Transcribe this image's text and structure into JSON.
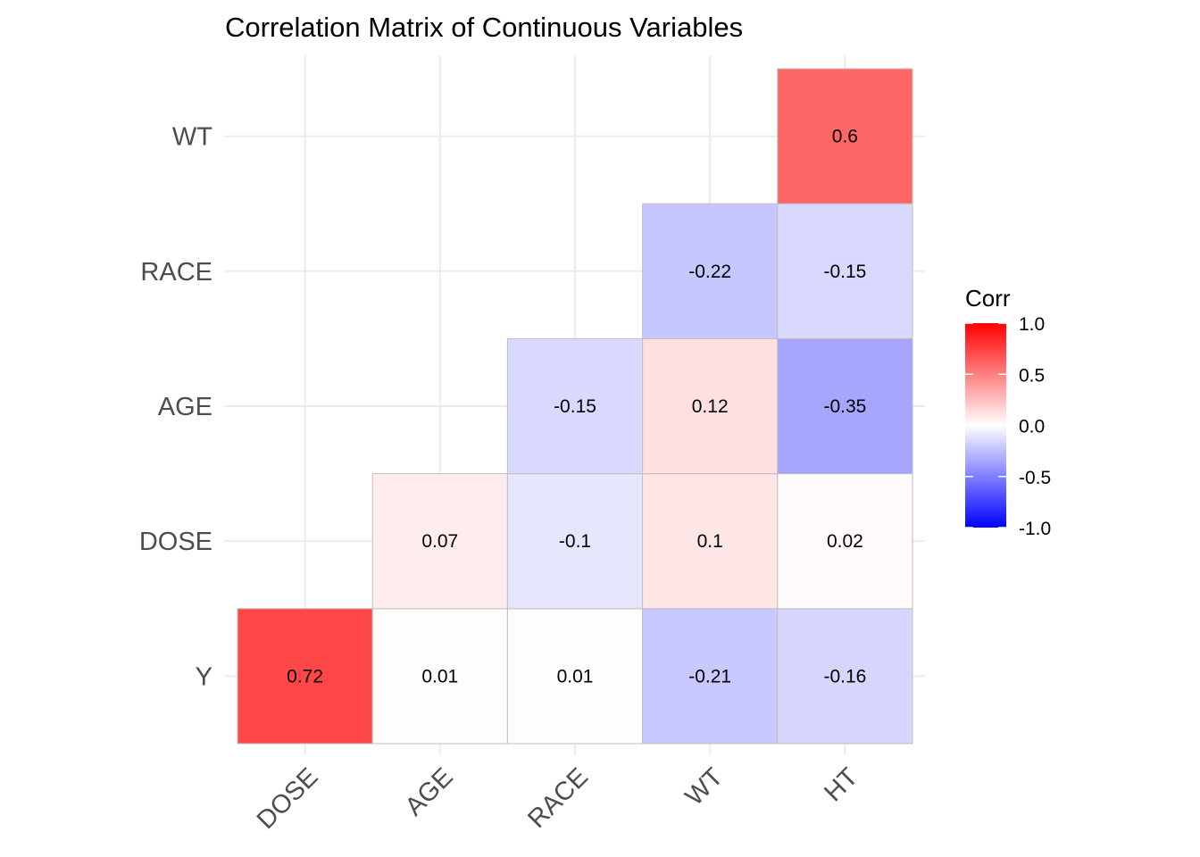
{
  "chart_data": {
    "type": "heatmap",
    "title": "Correlation Matrix of Continuous Variables",
    "x_categories": [
      "DOSE",
      "AGE",
      "RACE",
      "WT",
      "HT"
    ],
    "y_categories": [
      "Y",
      "DOSE",
      "AGE",
      "RACE",
      "WT"
    ],
    "cells": [
      {
        "x": "DOSE",
        "y": "Y",
        "value": 0.72,
        "label": "0.72"
      },
      {
        "x": "AGE",
        "y": "Y",
        "value": 0.01,
        "label": "0.01"
      },
      {
        "x": "RACE",
        "y": "Y",
        "value": 0.01,
        "label": "0.01"
      },
      {
        "x": "WT",
        "y": "Y",
        "value": -0.21,
        "label": "-0.21"
      },
      {
        "x": "HT",
        "y": "Y",
        "value": -0.16,
        "label": "-0.16"
      },
      {
        "x": "AGE",
        "y": "DOSE",
        "value": 0.07,
        "label": "0.07"
      },
      {
        "x": "RACE",
        "y": "DOSE",
        "value": -0.1,
        "label": "-0.1"
      },
      {
        "x": "WT",
        "y": "DOSE",
        "value": 0.1,
        "label": "0.1"
      },
      {
        "x": "HT",
        "y": "DOSE",
        "value": 0.02,
        "label": "0.02"
      },
      {
        "x": "RACE",
        "y": "AGE",
        "value": -0.15,
        "label": "-0.15"
      },
      {
        "x": "WT",
        "y": "AGE",
        "value": 0.12,
        "label": "0.12"
      },
      {
        "x": "HT",
        "y": "AGE",
        "value": -0.35,
        "label": "-0.35"
      },
      {
        "x": "WT",
        "y": "RACE",
        "value": -0.22,
        "label": "-0.22"
      },
      {
        "x": "HT",
        "y": "RACE",
        "value": -0.15,
        "label": "-0.15"
      },
      {
        "x": "HT",
        "y": "WT",
        "value": 0.6,
        "label": "0.6"
      }
    ],
    "legend": {
      "title": "Corr",
      "range": [
        -1,
        1
      ],
      "ticks": [
        {
          "value": 1,
          "label": "1.0"
        },
        {
          "value": 0.5,
          "label": "0.5"
        },
        {
          "value": 0,
          "label": "0.0"
        },
        {
          "value": -0.5,
          "label": "-0.5"
        },
        {
          "value": -1,
          "label": "-1.0"
        }
      ],
      "placement": "right"
    },
    "colors": {
      "low": "#0000ff",
      "mid": "#ffffff",
      "high": "#ff0000",
      "cell_border": "#bfbfbf",
      "grid": "#ebebeb"
    },
    "grid": true
  }
}
